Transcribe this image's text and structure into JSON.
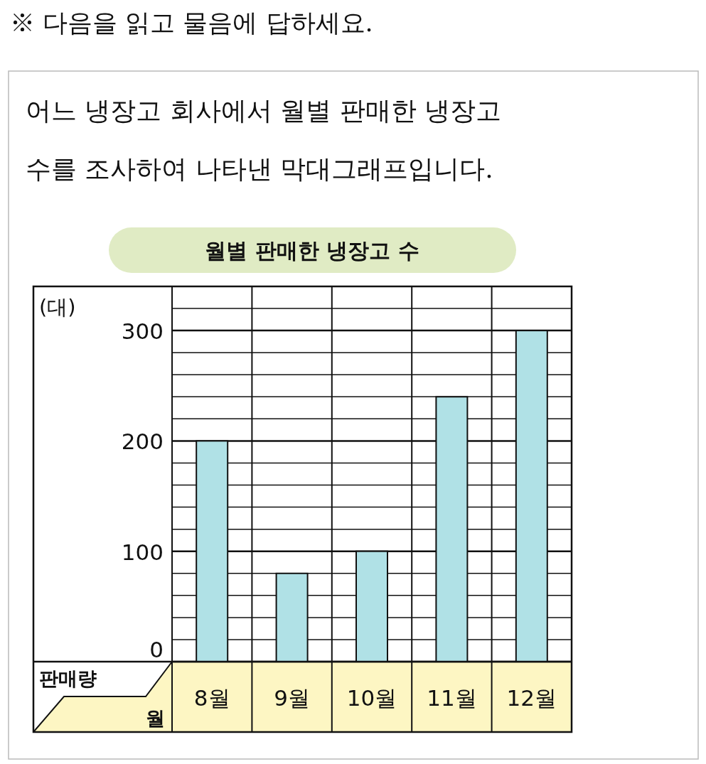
{
  "chart_data": {
    "type": "bar",
    "title": "월별 판매한 냉장고 수",
    "annotations": [
      "※ 다음을 읽고 물음에 답하세요.",
      "어느 냉장고 회사에서 월별 판매한 냉장고 수를 조사하여 나타낸 막대그래프입니다.",
      "(대)"
    ],
    "xlabel": "월",
    "ylabel": "판매량",
    "categories": [
      "8월",
      "9월",
      "10월",
      "11월",
      "12월"
    ],
    "values": [
      200,
      80,
      100,
      240,
      300
    ],
    "color": "#b0e1e6",
    "ylim": [
      0,
      340
    ],
    "yticks": [
      0,
      {
        "value": 20,
        "label": null
      },
      {
        "value": 40,
        "label": null
      },
      {
        "value": 60,
        "label": null
      },
      {
        "value": 80,
        "label": null
      },
      100,
      {
        "value": 120,
        "label": null
      },
      {
        "value": 140,
        "label": null
      },
      {
        "value": 160,
        "label": null
      },
      {
        "value": 180,
        "label": null
      },
      200,
      {
        "value": 220,
        "label": null
      },
      {
        "value": 240,
        "label": null
      },
      {
        "value": 260,
        "label": null
      },
      {
        "value": 280,
        "label": null
      },
      300,
      {
        "value": 320,
        "label": null
      }
    ],
    "grid": "y"
  }
}
